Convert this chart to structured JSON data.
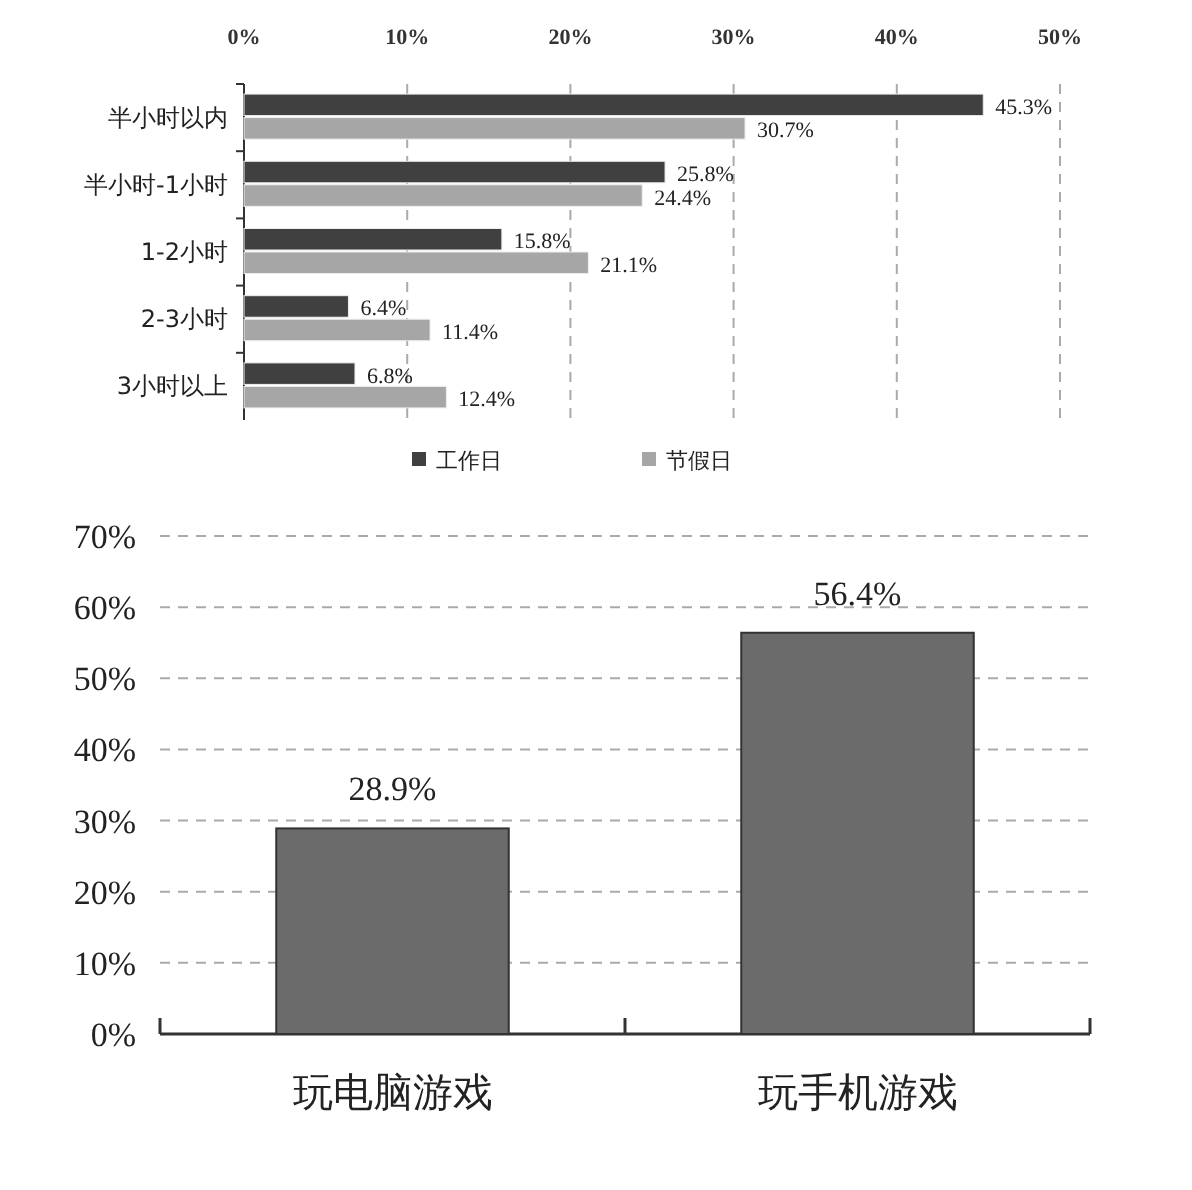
{
  "chart_data": [
    {
      "type": "bar",
      "orientation": "horizontal",
      "categories": [
        "半小时以内",
        "半小时-1小时",
        "1-2小时",
        "2-3小时",
        "3小时以上"
      ],
      "series": [
        {
          "name": "工作日",
          "color": "#404040",
          "values": [
            45.3,
            25.8,
            15.8,
            6.4,
            6.8
          ],
          "value_labels": [
            "45.3%",
            "25.8%",
            "15.8%",
            "6.4%",
            "6.8%"
          ]
        },
        {
          "name": "节假日",
          "color": "#a6a6a6",
          "values": [
            30.7,
            24.4,
            21.1,
            11.4,
            12.4
          ],
          "value_labels": [
            "30.7%",
            "24.4%",
            "21.1%",
            "11.4%",
            "12.4%"
          ]
        }
      ],
      "xlim": [
        0,
        50
      ],
      "xticks": [
        {
          "value": 0,
          "label": "0%"
        },
        {
          "value": 10,
          "label": "10%"
        },
        {
          "value": 20,
          "label": "20%"
        },
        {
          "value": 30,
          "label": "30%"
        },
        {
          "value": 40,
          "label": "40%"
        },
        {
          "value": 50,
          "label": "50%"
        }
      ],
      "grid": "x",
      "line_style": "dashed",
      "legend": "bottom"
    },
    {
      "type": "bar",
      "categories": [
        "玩电脑游戏",
        "玩手机游戏"
      ],
      "color": "#6b6b6b",
      "values": [
        28.9,
        56.4
      ],
      "value_labels": [
        "28.9%",
        "56.4%"
      ],
      "ylim": [
        0,
        70
      ],
      "yticks": [
        {
          "value": 0,
          "label": "0%"
        },
        {
          "value": 10,
          "label": "10%"
        },
        {
          "value": 20,
          "label": "20%"
        },
        {
          "value": 30,
          "label": "30%"
        },
        {
          "value": 40,
          "label": "40%"
        },
        {
          "value": 50,
          "label": "50%"
        },
        {
          "value": 60,
          "label": "60%"
        },
        {
          "value": 70,
          "label": "70%"
        }
      ],
      "grid": "y",
      "line_style": "dashed"
    }
  ]
}
